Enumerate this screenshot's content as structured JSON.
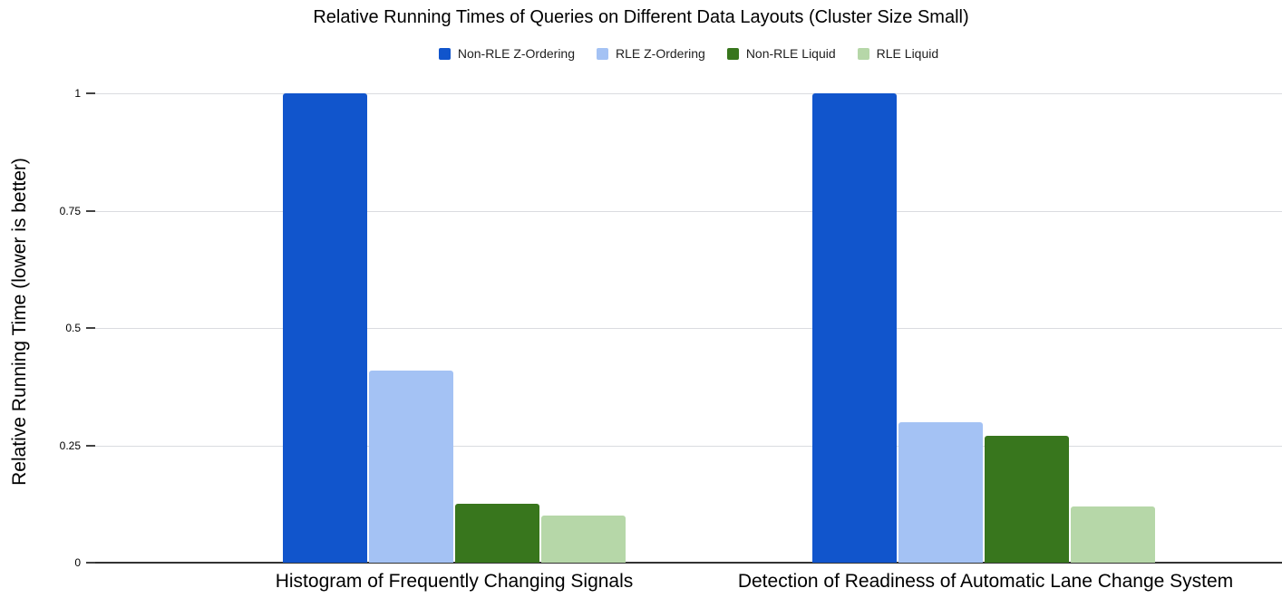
{
  "chart_data": {
    "type": "bar",
    "title": "Relative Running Times of Queries on Different Data Layouts (Cluster Size Small)",
    "xlabel": "",
    "ylabel": "Relative Running Time (lower is better)",
    "categories": [
      "Histogram of Frequently Changing Signals",
      "Detection of Readiness of Automatic Lane Change System"
    ],
    "series": [
      {
        "name": "Non-RLE Z-Ordering",
        "color": "#1155cc",
        "values": [
          1,
          1
        ]
      },
      {
        "name": "RLE Z-Ordering",
        "color": "#a4c2f4",
        "values": [
          0.41,
          0.3
        ]
      },
      {
        "name": "Non-RLE Liquid",
        "color": "#38761d",
        "values": [
          0.125,
          0.27
        ]
      },
      {
        "name": "RLE Liquid",
        "color": "#b6d7a8",
        "values": [
          0.1,
          0.12
        ]
      }
    ],
    "ylim": [
      0,
      1
    ],
    "yticks": [
      0,
      0.25,
      0.5,
      0.75,
      1
    ],
    "ytick_labels": [
      "0",
      "0.25",
      "0.5",
      "0.75",
      "1"
    ],
    "grid": true,
    "legend_position": "top-center",
    "colors": {
      "background": "#ffffff",
      "gridline": "#dadce0",
      "axis_line": "#333333",
      "text": "#000000"
    }
  }
}
